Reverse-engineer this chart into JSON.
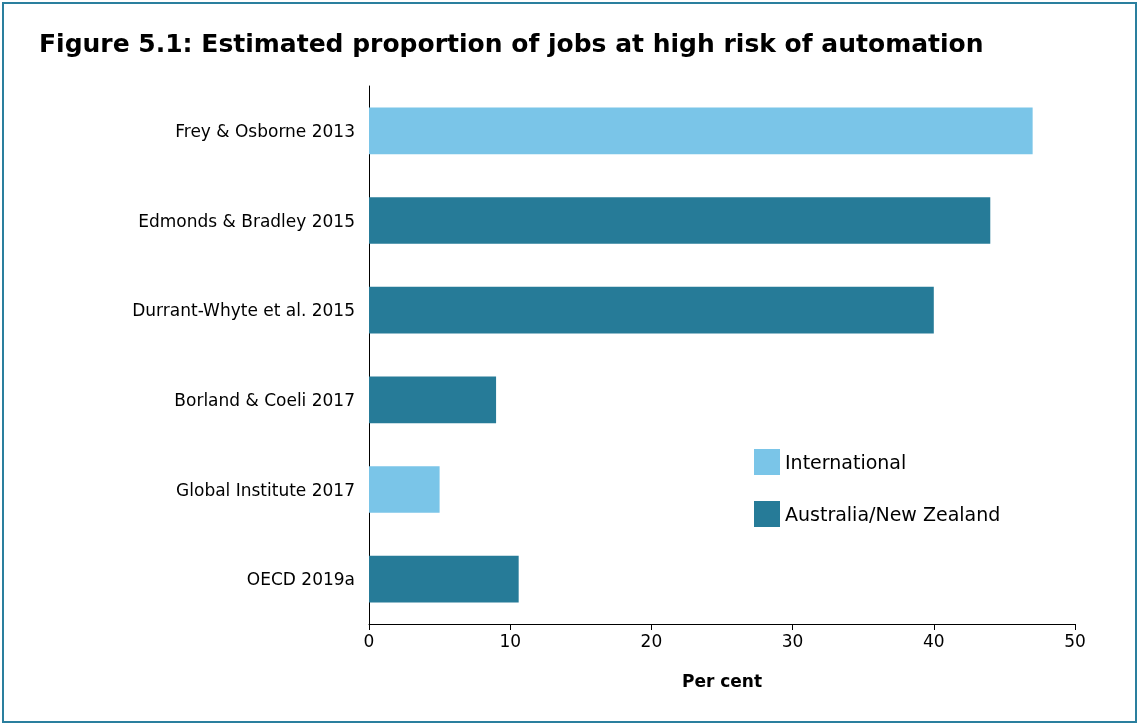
{
  "chart_data": {
    "type": "bar",
    "orientation": "horizontal",
    "title": "Figure 5.1: Estimated proportion of jobs at high risk of automation",
    "categories": [
      "Frey & Osborne 2013",
      "Edmonds & Bradley 2015",
      "Durrant-Whyte et al. 2015",
      "Borland & Coeli 2017",
      "Global Institute 2017",
      "OECD 2019a"
    ],
    "series": [
      {
        "name": "International",
        "color": "#7ac5e8",
        "values": [
          47,
          null,
          null,
          null,
          5,
          null
        ]
      },
      {
        "name": "Australia/New Zealand",
        "color": "#267b98",
        "values": [
          null,
          44,
          40,
          9,
          null,
          10.6
        ]
      }
    ],
    "xlabel": "Per cent",
    "xlim": [
      0,
      50
    ],
    "xticks": [
      0,
      10,
      20,
      30,
      40,
      50
    ],
    "grid": false,
    "legend": "right"
  }
}
